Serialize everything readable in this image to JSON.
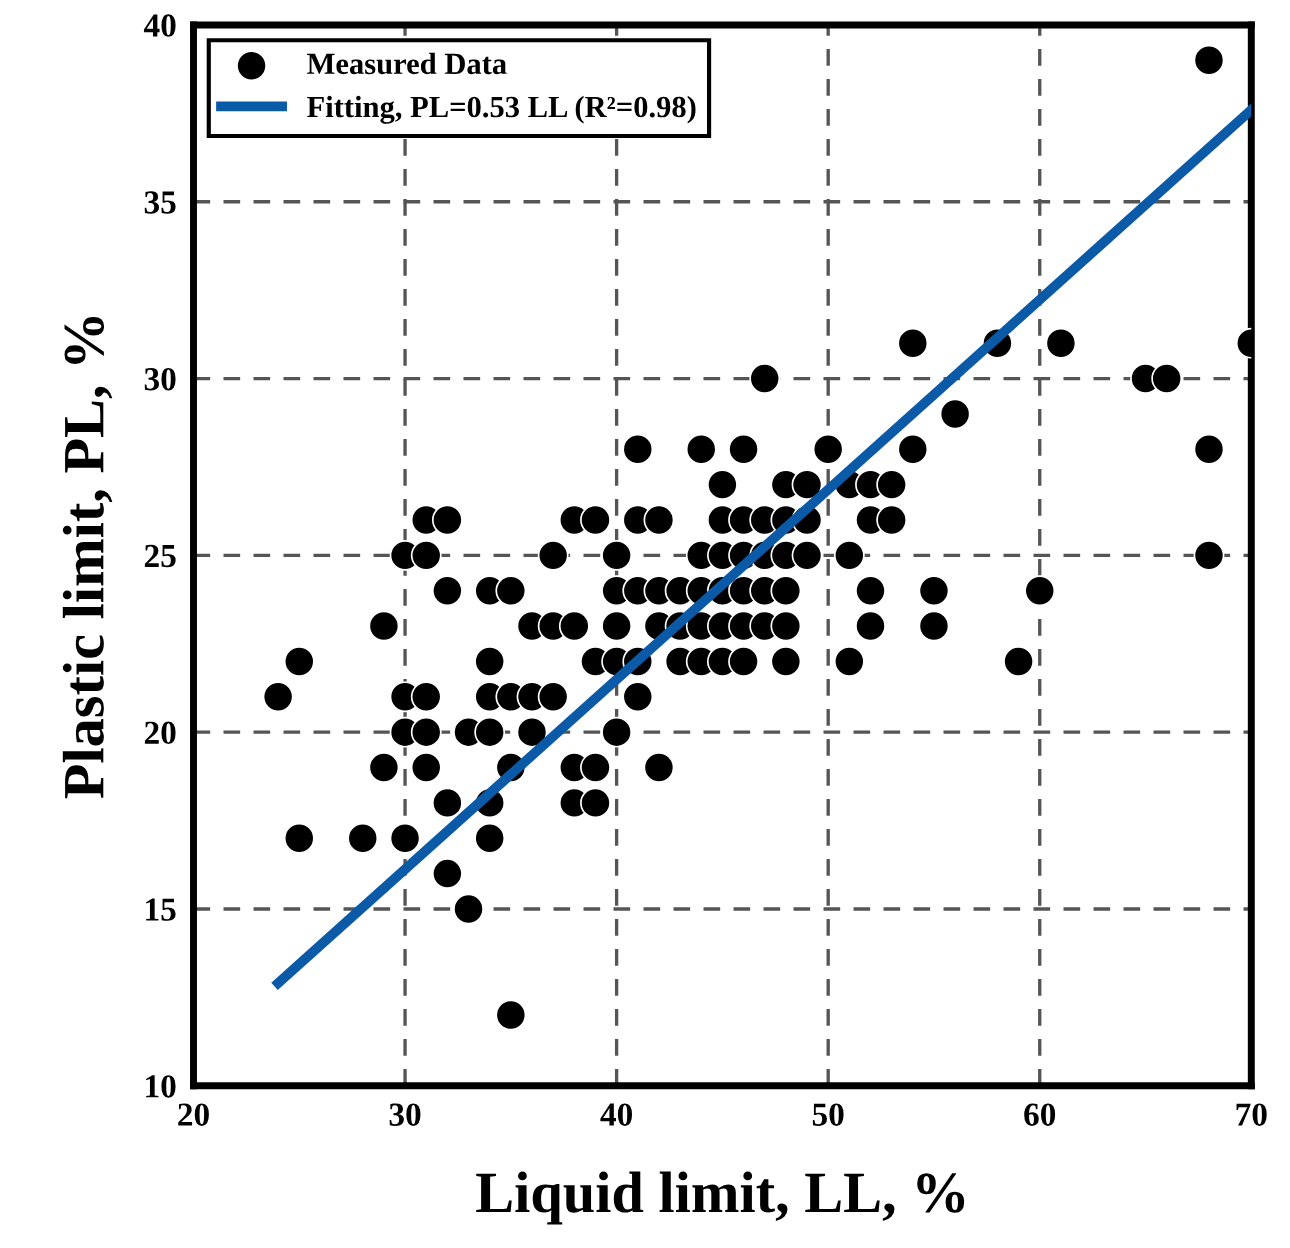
{
  "chart_data": {
    "type": "scatter",
    "xlabel": "Liquid limit, LL, %",
    "ylabel": "Plastic limit, PL, %",
    "xlim": [
      20,
      70
    ],
    "ylim": [
      10,
      40
    ],
    "xticks": [
      20,
      30,
      40,
      50,
      60,
      70
    ],
    "yticks": [
      10,
      15,
      20,
      25,
      30,
      35,
      40
    ],
    "grid": true,
    "legend": "top left",
    "series": [
      {
        "name": "Measured Data",
        "color": "#000000",
        "marker": "circle",
        "x": [
          24,
          25,
          25,
          28,
          29,
          29,
          30,
          30,
          30,
          30,
          31,
          31,
          31,
          31,
          31,
          32,
          32,
          32,
          32,
          33,
          33,
          34,
          34,
          34,
          34,
          34,
          34,
          35,
          35,
          35,
          35,
          36,
          36,
          36,
          37,
          37,
          37,
          38,
          38,
          38,
          38,
          39,
          39,
          39,
          39,
          40,
          40,
          40,
          40,
          40,
          41,
          41,
          41,
          41,
          41,
          42,
          42,
          42,
          42,
          43,
          43,
          43,
          44,
          44,
          44,
          44,
          44,
          45,
          45,
          45,
          45,
          45,
          45,
          46,
          46,
          46,
          46,
          46,
          46,
          47,
          47,
          47,
          47,
          47,
          48,
          48,
          48,
          48,
          48,
          48,
          49,
          49,
          49,
          50,
          51,
          51,
          51,
          52,
          52,
          52,
          52,
          53,
          53,
          54,
          54,
          55,
          55,
          56,
          58,
          59,
          60,
          61,
          65,
          66,
          68,
          68,
          68,
          70
        ],
        "values": [
          21,
          22,
          17,
          17,
          23,
          19,
          25,
          21,
          20,
          17,
          26,
          25,
          21,
          20,
          19,
          26,
          24,
          18,
          16,
          20,
          15,
          24,
          22,
          21,
          20,
          18,
          17,
          24,
          21,
          19,
          12,
          23,
          21,
          20,
          25,
          23,
          21,
          26,
          23,
          19,
          18,
          26,
          22,
          19,
          18,
          25,
          24,
          23,
          22,
          20,
          28,
          26,
          24,
          22,
          21,
          26,
          24,
          23,
          19,
          24,
          23,
          22,
          28,
          25,
          24,
          23,
          22,
          27,
          26,
          25,
          24,
          23,
          22,
          28,
          26,
          25,
          24,
          23,
          22,
          30,
          26,
          25,
          24,
          23,
          27,
          26,
          25,
          24,
          23,
          22,
          27,
          26,
          25,
          28,
          27,
          25,
          22,
          27,
          26,
          24,
          23,
          27,
          26,
          28,
          31,
          24,
          23,
          29,
          31,
          22,
          24,
          31,
          30,
          30,
          39,
          28,
          25,
          31
        ]
      },
      {
        "name": "Fitting, PL=0.53 LL (R²=0.98)",
        "type": "line",
        "color": "#0a5aa8",
        "marker": "none",
        "line_style": "solid",
        "x": [
          24,
          70
        ],
        "values": [
          12.9,
          37.6
        ]
      }
    ]
  }
}
